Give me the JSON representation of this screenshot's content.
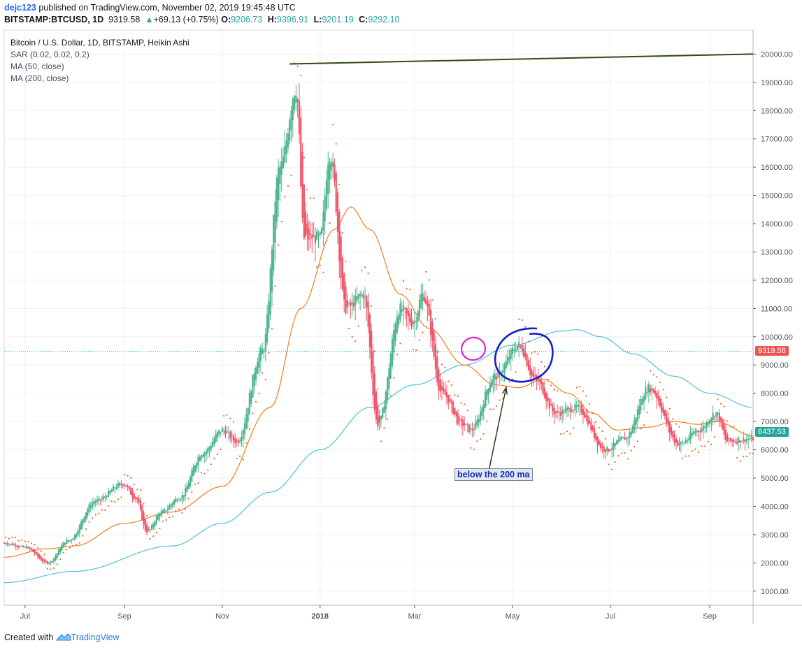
{
  "header": {
    "author": "dejc123",
    "published_text": " published on TradingView.com, November 02, 2019 19:45:48 UTC",
    "symbol": "BITSTAMP:BTCUSD, 1D",
    "last_price": "9319.58",
    "change_arrow": "▲",
    "change_text": "+69.13 (+0.75%)",
    "o_label": "O:",
    "o_value": "9206.73",
    "h_label": "H:",
    "h_value": "9396.91",
    "l_label": "L:",
    "l_value": "9201.19",
    "c_label": "C:",
    "c_value": "9292.10"
  },
  "legend": {
    "title": "Bitcoin / U.S. Dollar, 1D, BITSTAMP, Heikin Ashi",
    "sar": "SAR (0.02, 0.02, 0.2)",
    "ma50": "MA (50, close)",
    "ma200": "MA (200, close)"
  },
  "price_tags": {
    "last": "9319.58",
    "ma": "6437.53"
  },
  "annotation": {
    "text": "below the 200 ma"
  },
  "footer": {
    "prefix": "Created with",
    "brand": "TradingView"
  },
  "colors": {
    "up": "#26a69a",
    "up_candle": "#4cb58b",
    "down_candle": "#f05467",
    "ma50": "#f57c22",
    "ma200": "#4fc3d9",
    "sar": "#e06a1a",
    "trendline": "#2d4a1a",
    "blue_circle": "#1320c8",
    "pink_circle": "#e020d0",
    "grid": "#eef0f3",
    "axis": "#50535e"
  },
  "chart_data": {
    "type": "candlestick",
    "chart_style": "Heikin Ashi",
    "y_axis": {
      "ticks": [
        1000,
        2000,
        3000,
        4000,
        5000,
        6000,
        7000,
        8000,
        9000,
        10000,
        11000,
        12000,
        13000,
        14000,
        15000,
        16000,
        17000,
        18000,
        19000,
        20000
      ],
      "tick_labels": [
        "1000.00",
        "2000.00",
        "3000.00",
        "4000.00",
        "5000.00",
        "6000.00",
        "7000.00",
        "8000.00",
        "9000.00",
        "10000.00",
        "11000.00",
        "12000.00",
        "13000.00",
        "14000.00",
        "15000.00",
        "16000.00",
        "17000.00",
        "18000.00",
        "19000.00",
        "20000.00"
      ],
      "range": [
        500,
        20850
      ],
      "position": "right"
    },
    "x_axis": {
      "range": [
        "2017-06-18",
        "2018-09-28"
      ],
      "tick_dates": [
        "2017-07-01",
        "2017-09-01",
        "2017-11-01",
        "2018-01-01",
        "2018-03-01",
        "2018-05-01",
        "2018-07-01",
        "2018-09-01"
      ],
      "tick_labels": [
        "Jul",
        "Sep",
        "Nov",
        "2018",
        "Mar",
        "May",
        "Jul",
        "Sep"
      ]
    },
    "grid": true,
    "price_anchors": [
      [
        "2017-06-18",
        2700
      ],
      [
        "2017-07-01",
        2550
      ],
      [
        "2017-07-15",
        2000
      ],
      [
        "2017-07-28",
        2800
      ],
      [
        "2017-08-14",
        4200
      ],
      [
        "2017-08-31",
        4800
      ],
      [
        "2017-09-08",
        4300
      ],
      [
        "2017-09-15",
        3100
      ],
      [
        "2017-09-24",
        3800
      ],
      [
        "2017-10-05",
        4300
      ],
      [
        "2017-10-20",
        5900
      ],
      [
        "2017-11-01",
        6700
      ],
      [
        "2017-11-10",
        6300
      ],
      [
        "2017-11-26",
        9500
      ],
      [
        "2017-12-07",
        16000
      ],
      [
        "2017-12-17",
        18800
      ],
      [
        "2017-12-22",
        13500
      ],
      [
        "2018-01-01",
        13500
      ],
      [
        "2018-01-07",
        16500
      ],
      [
        "2018-01-17",
        11000
      ],
      [
        "2018-01-28",
        11500
      ],
      [
        "2018-02-06",
        6900
      ],
      [
        "2018-02-20",
        11000
      ],
      [
        "2018-02-28",
        10500
      ],
      [
        "2018-03-06",
        11500
      ],
      [
        "2018-03-18",
        8000
      ],
      [
        "2018-03-31",
        6900
      ],
      [
        "2018-04-05",
        6700
      ],
      [
        "2018-04-20",
        8600
      ],
      [
        "2018-05-05",
        9700
      ],
      [
        "2018-05-15",
        8500
      ],
      [
        "2018-05-28",
        7300
      ],
      [
        "2018-06-10",
        7500
      ],
      [
        "2018-06-28",
        6000
      ],
      [
        "2018-07-10",
        6400
      ],
      [
        "2018-07-25",
        8200
      ],
      [
        "2018-08-13",
        6200
      ],
      [
        "2018-08-25",
        6700
      ],
      [
        "2018-09-05",
        7300
      ],
      [
        "2018-09-12",
        6300
      ],
      [
        "2018-09-28",
        6400
      ]
    ],
    "series": [
      {
        "name": "MA (50, close)",
        "type": "line",
        "points": [
          [
            "2017-06-18",
            2200
          ],
          [
            "2017-07-15",
            2500
          ],
          [
            "2017-08-01",
            2600
          ],
          [
            "2017-09-01",
            3400
          ],
          [
            "2017-10-01",
            3800
          ],
          [
            "2017-11-01",
            4700
          ],
          [
            "2017-12-01",
            7500
          ],
          [
            "2017-12-20",
            11000
          ],
          [
            "2018-01-10",
            13800
          ],
          [
            "2018-01-20",
            14600
          ],
          [
            "2018-02-01",
            13800
          ],
          [
            "2018-02-20",
            11500
          ],
          [
            "2018-03-10",
            10300
          ],
          [
            "2018-04-01",
            9000
          ],
          [
            "2018-04-20",
            8300
          ],
          [
            "2018-05-05",
            8200
          ],
          [
            "2018-05-20",
            8500
          ],
          [
            "2018-06-05",
            8000
          ],
          [
            "2018-06-20",
            7300
          ],
          [
            "2018-07-05",
            6700
          ],
          [
            "2018-07-25",
            6800
          ],
          [
            "2018-08-10",
            7000
          ],
          [
            "2018-08-25",
            6900
          ],
          [
            "2018-09-05",
            7000
          ],
          [
            "2018-09-28",
            6500
          ]
        ]
      },
      {
        "name": "MA (200, close)",
        "type": "line",
        "points": [
          [
            "2017-06-18",
            1300
          ],
          [
            "2017-08-01",
            1700
          ],
          [
            "2017-10-01",
            2600
          ],
          [
            "2017-11-01",
            3400
          ],
          [
            "2017-12-01",
            4500
          ],
          [
            "2018-01-01",
            6000
          ],
          [
            "2018-02-01",
            7500
          ],
          [
            "2018-03-01",
            8300
          ],
          [
            "2018-04-01",
            9000
          ],
          [
            "2018-05-01",
            9700
          ],
          [
            "2018-06-01",
            10200
          ],
          [
            "2018-06-10",
            10250
          ],
          [
            "2018-06-25",
            10000
          ],
          [
            "2018-07-15",
            9400
          ],
          [
            "2018-08-10",
            8600
          ],
          [
            "2018-09-01",
            8000
          ],
          [
            "2018-09-28",
            7500
          ]
        ]
      },
      {
        "name": "SAR (0.02, 0.02, 0.2)",
        "type": "scatter"
      }
    ],
    "trendline": [
      [
        "2017-12-13",
        19650
      ],
      [
        "2018-09-28",
        20000
      ]
    ],
    "annotation_arrow": {
      "text": "below the 200 ma",
      "from": [
        "2018-04-16",
        5200
      ],
      "to": [
        "2018-04-27",
        8200
      ]
    }
  }
}
